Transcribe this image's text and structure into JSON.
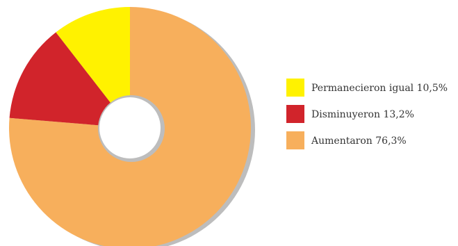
{
  "chart_data": {
    "type": "pie",
    "subtype": "donut",
    "legend_position": "right",
    "slices": [
      {
        "label": "Permanecieron igual",
        "value": 10.5,
        "value_label": "10,5%",
        "color": "#FFF200"
      },
      {
        "label": "Disminuyeron",
        "value": 13.2,
        "value_label": "13,2%",
        "color": "#D1242B"
      },
      {
        "label": "Aumentaron",
        "value": 76.3,
        "value_label": "76,3%",
        "color": "#F7AF5C"
      }
    ],
    "shadow_color": "#BDBDBD",
    "hole_border_color": "#BDBDBD"
  }
}
